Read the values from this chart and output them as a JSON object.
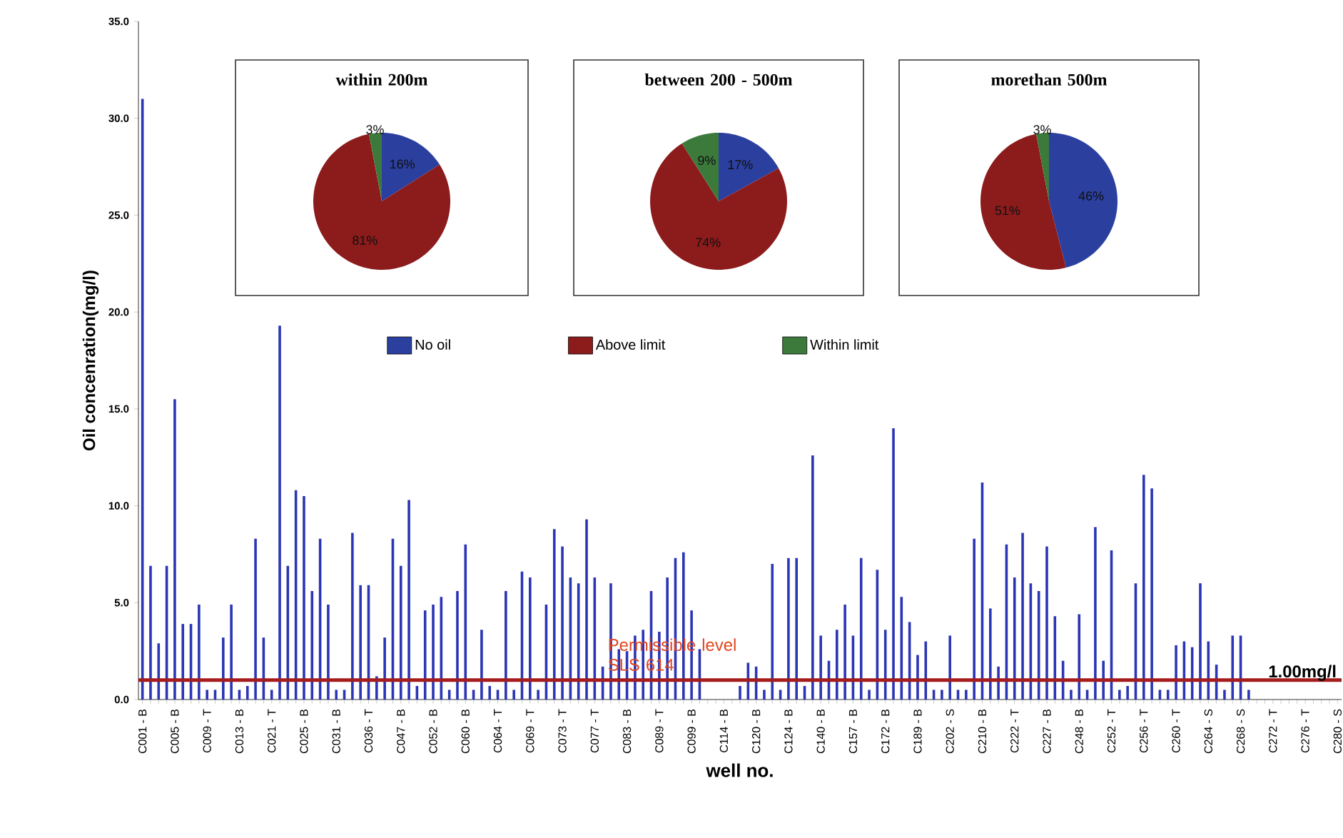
{
  "chart_data": [
    {
      "type": "bar",
      "xlabel": "well no.",
      "ylabel": "Oil concenration(mg/l)",
      "color": "#2b35b5",
      "categories": [
        "C001 - B",
        null,
        null,
        null,
        "C005 - B",
        null,
        null,
        null,
        "C009 - T",
        null,
        null,
        null,
        "C013 - B",
        null,
        null,
        null,
        "C021 - T",
        null,
        null,
        null,
        "C025 - B",
        null,
        null,
        null,
        "C031 - B",
        null,
        null,
        null,
        "C036 - T",
        null,
        null,
        null,
        "C047 - B",
        null,
        null,
        null,
        "C052 - B",
        null,
        null,
        null,
        "C060 - B",
        null,
        null,
        null,
        "C064 - T",
        null,
        null,
        null,
        "C069 - T",
        null,
        null,
        null,
        "C073 - T",
        null,
        null,
        null,
        "C077 - T",
        null,
        null,
        null,
        "C083 - B",
        null,
        null,
        null,
        "C089 - T",
        null,
        null,
        null,
        "C099 - B",
        null,
        null,
        null,
        "C114 - B",
        null,
        null,
        null,
        "C120 - B",
        null,
        null,
        null,
        "C124 - B",
        null,
        null,
        null,
        "C140 - B",
        null,
        null,
        null,
        "C157 - B",
        null,
        null,
        null,
        "C172 - B",
        null,
        null,
        null,
        "C189 - B",
        null,
        null,
        null,
        "C202 - S",
        null,
        null,
        null,
        "C210 - B",
        null,
        null,
        null,
        "C222 - T",
        null,
        null,
        null,
        "C227 - B",
        null,
        null,
        null,
        "C248 - B",
        null,
        null,
        null,
        "C252 - T",
        null,
        null,
        null,
        "C256 - T",
        null,
        null,
        null,
        "C260 - T",
        null,
        null,
        null,
        "C264 - S",
        null,
        null,
        null,
        "C268 - S",
        null,
        null,
        null,
        "C272 - T",
        null,
        null,
        null,
        "C276 - T",
        null,
        null,
        null,
        "C280 - S"
      ],
      "values": [
        31.0,
        6.9,
        2.9,
        6.9,
        15.5,
        3.9,
        3.9,
        4.9,
        0.5,
        0.5,
        3.2,
        4.9,
        0.5,
        0.7,
        8.3,
        3.2,
        0.5,
        19.3,
        6.9,
        10.8,
        10.5,
        5.6,
        8.3,
        4.9,
        0.5,
        0.5,
        8.6,
        5.9,
        5.9,
        1.2,
        3.2,
        8.3,
        6.9,
        10.3,
        0.7,
        4.6,
        4.9,
        5.3,
        0.5,
        5.6,
        8.0,
        0.5,
        3.6,
        0.7,
        0.5,
        5.6,
        0.5,
        6.6,
        6.3,
        0.5,
        4.9,
        8.8,
        7.9,
        6.3,
        6.0,
        9.3,
        6.3,
        1.7,
        6.0,
        2.6,
        2.5,
        3.3,
        3.6,
        5.6,
        3.5,
        6.3,
        7.3,
        7.6,
        4.6,
        2.6,
        null,
        null,
        null,
        null,
        0.7,
        1.9,
        1.7,
        0.5,
        7.0,
        0.5,
        7.3,
        7.3,
        0.7,
        12.6,
        3.3,
        2.0,
        3.6,
        4.9,
        3.3,
        7.3,
        0.5,
        6.7,
        3.6,
        14.0,
        5.3,
        4.0,
        2.3,
        3.0,
        0.5,
        0.5,
        3.3,
        0.5,
        0.5,
        8.3,
        11.2,
        4.7,
        1.7,
        8.0,
        6.3,
        8.6,
        6.0,
        5.6,
        7.9,
        4.3,
        2.0,
        0.5,
        4.4,
        0.5,
        8.9,
        2.0,
        7.7,
        0.5,
        0.7,
        6.0,
        11.6,
        10.9,
        0.5,
        0.5,
        2.8,
        3.0,
        2.7,
        6.0,
        3.0,
        1.8,
        0.5,
        3.3,
        3.3,
        0.5,
        null,
        null,
        null,
        null,
        null,
        null,
        null,
        null,
        null,
        null,
        null
      ],
      "ylim": [
        0,
        35
      ],
      "yticks": [
        {
          "value": 0,
          "label": "0.0"
        },
        {
          "value": 5,
          "label": "5.0"
        },
        {
          "value": 10,
          "label": "10.0"
        },
        {
          "value": 15,
          "label": "15.0"
        },
        {
          "value": 20,
          "label": "20.0"
        },
        {
          "value": 25,
          "label": "25.0"
        },
        {
          "value": 30,
          "label": "30.0"
        },
        {
          "value": 35,
          "label": "35.0"
        }
      ],
      "ref_lines": [
        {
          "axis": "y",
          "value": 1.0,
          "label": "Permissible level SLS 614",
          "color": "#a51c1c"
        }
      ],
      "annotations": [
        "1.00mg/l"
      ]
    },
    {
      "type": "pie",
      "title": "within  200m",
      "categories": [
        "No oil",
        "Above limit",
        "Within limit"
      ],
      "values": [
        16,
        81,
        3
      ],
      "colors": [
        "#2b3f9e",
        "#8c1b1b",
        "#3c7a3c"
      ],
      "value_labels": [
        "16%",
        "81%",
        "3%"
      ],
      "legend": "bottom"
    },
    {
      "type": "pie",
      "title": "between 200 - 500m",
      "values": [
        17,
        74,
        9
      ],
      "colors": [
        "#2b3f9e",
        "#8c1b1b",
        "#3c7a3c"
      ],
      "value_labels": [
        "17%",
        "74%",
        "9%"
      ]
    },
    {
      "type": "pie",
      "title": "morethan 500m",
      "values": [
        46,
        51,
        3
      ],
      "colors": [
        "#2b3f9e",
        "#8c1b1b",
        "#3c7a3c"
      ],
      "value_labels": [
        "46%",
        "51%",
        "3%"
      ]
    }
  ]
}
